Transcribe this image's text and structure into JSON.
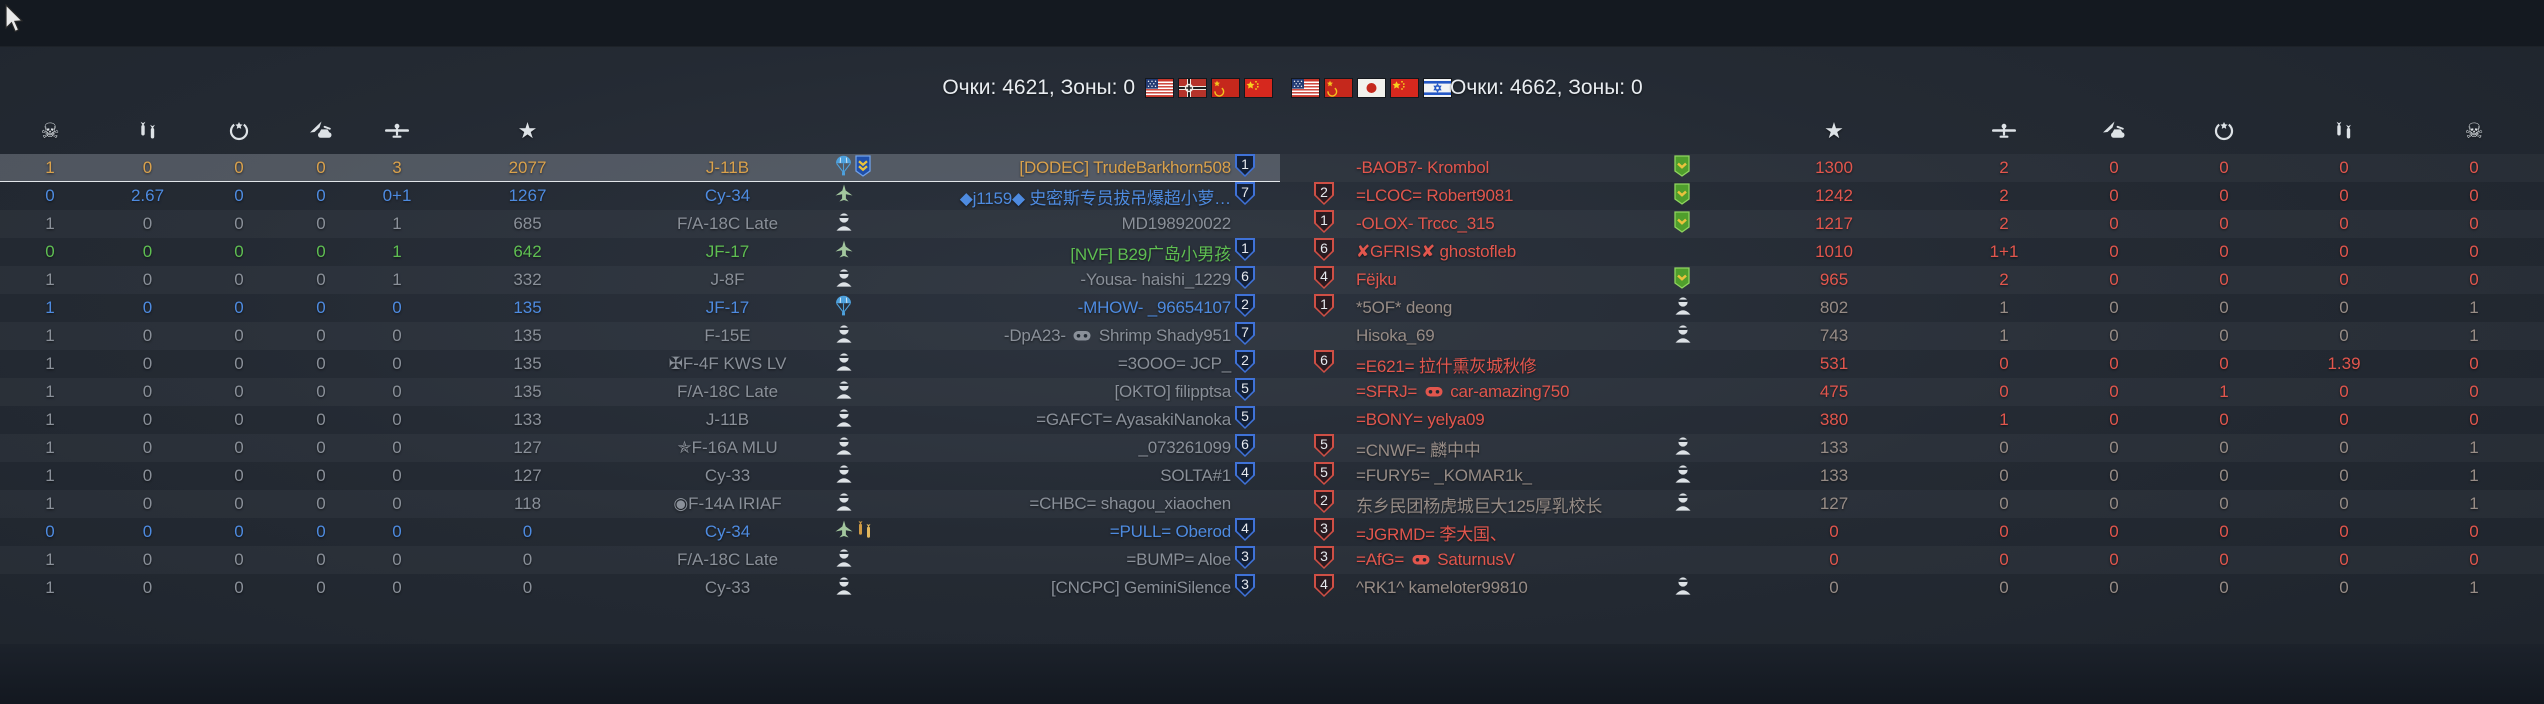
{
  "top_bar": {
    "left_score": "Очки: 4621, Зоны: 0",
    "right_score": "Очки: 4662, Зоны: 0",
    "left_flags": [
      "usa",
      "germany",
      "ussr",
      "china"
    ],
    "right_flags": [
      "usa",
      "ussr",
      "japan",
      "china",
      "israel"
    ]
  },
  "colors": {
    "self": "#d9a14c",
    "squad": "#4e8be0",
    "friendly_highlight": "#5fbf52",
    "friendly_dead": "#8a9099",
    "enemy": "#e2564d",
    "enemy_dead": "#978c86",
    "badge_friendly": "#3f72d8",
    "badge_enemy": "#cf4f45"
  },
  "left_table": {
    "columns": [
      "skull",
      "bombs",
      "wreath",
      "strike",
      "plane",
      "star"
    ],
    "rows": [
      {
        "deaths": "1",
        "bombs": "0",
        "awards": "0",
        "ground": "0",
        "air": "3",
        "score": "2077",
        "vehicle": "J-11B",
        "icons": [
          "parachute",
          "banner-blue"
        ],
        "name": "[DODEC] TrudeBarkhorn508",
        "badge": "1",
        "color": "gold",
        "selected": true
      },
      {
        "deaths": "0",
        "bombs": "2.67",
        "awards": "0",
        "ground": "0",
        "air": "0+1",
        "score": "1267",
        "vehicle": "Су-34",
        "icons": [
          "plane"
        ],
        "name": "◆j1159◆ 史密斯专员拔吊爆超小萝…",
        "badge": "7",
        "color": "blue"
      },
      {
        "deaths": "1",
        "bombs": "0",
        "awards": "0",
        "ground": "0",
        "air": "1",
        "score": "685",
        "vehicle": "F/A-18C Late",
        "icons": [
          "pilot"
        ],
        "name": "MD198920022",
        "badge": "",
        "color": "gray"
      },
      {
        "deaths": "0",
        "bombs": "0",
        "awards": "0",
        "ground": "0",
        "air": "1",
        "score": "642",
        "vehicle": "JF-17",
        "icons": [
          "plane"
        ],
        "name": "[NVF] B29广岛小男孩",
        "badge": "1",
        "color": "green"
      },
      {
        "deaths": "1",
        "bombs": "0",
        "awards": "0",
        "ground": "0",
        "air": "1",
        "score": "332",
        "vehicle": "J-8F",
        "icons": [
          "pilot"
        ],
        "name": "-Yousa- haishi_1229",
        "badge": "6",
        "color": "gray"
      },
      {
        "deaths": "1",
        "bombs": "0",
        "awards": "0",
        "ground": "0",
        "air": "0",
        "score": "135",
        "vehicle": "JF-17",
        "icons": [
          "parachute"
        ],
        "name": "-MHOW- _96654107",
        "badge": "2",
        "color": "blue"
      },
      {
        "deaths": "1",
        "bombs": "0",
        "awards": "0",
        "ground": "0",
        "air": "0",
        "score": "135",
        "vehicle": "F-15E",
        "icons": [
          "pilot"
        ],
        "name": "-DpA23- 🎮 Shrimp Shady951",
        "badge": "7",
        "color": "gray"
      },
      {
        "deaths": "1",
        "bombs": "0",
        "awards": "0",
        "ground": "0",
        "air": "0",
        "score": "135",
        "vehicle": "✠F-4F KWS LV",
        "icons": [
          "pilot"
        ],
        "name": "=3OOO= JCP_",
        "badge": "2",
        "color": "gray"
      },
      {
        "deaths": "1",
        "bombs": "0",
        "awards": "0",
        "ground": "0",
        "air": "0",
        "score": "135",
        "vehicle": "F/A-18C Late",
        "icons": [
          "pilot"
        ],
        "name": "[OKTO] filipptsa",
        "badge": "5",
        "color": "gray"
      },
      {
        "deaths": "1",
        "bombs": "0",
        "awards": "0",
        "ground": "0",
        "air": "0",
        "score": "133",
        "vehicle": "J-11B",
        "icons": [
          "pilot"
        ],
        "name": "=GAFCT= AyasakiNanoka",
        "badge": "5",
        "color": "gray"
      },
      {
        "deaths": "1",
        "bombs": "0",
        "awards": "0",
        "ground": "0",
        "air": "0",
        "score": "127",
        "vehicle": "✯F-16A MLU",
        "icons": [
          "pilot"
        ],
        "name": "_073261099",
        "badge": "6",
        "color": "gray"
      },
      {
        "deaths": "1",
        "bombs": "0",
        "awards": "0",
        "ground": "0",
        "air": "0",
        "score": "127",
        "vehicle": "Су-33",
        "icons": [
          "pilot"
        ],
        "name": "SOLTA#1",
        "badge": "4",
        "color": "gray"
      },
      {
        "deaths": "1",
        "bombs": "0",
        "awards": "0",
        "ground": "0",
        "air": "0",
        "score": "118",
        "vehicle": "◉F-14A IRIAF",
        "icons": [
          "pilot"
        ],
        "name": "=CHBC= shagou_xiaochen",
        "badge": "",
        "color": "gray"
      },
      {
        "deaths": "0",
        "bombs": "0",
        "awards": "0",
        "ground": "0",
        "air": "0",
        "score": "0",
        "vehicle": "Су-34",
        "icons": [
          "plane",
          "bombs-small"
        ],
        "name": "=PULL= Oberod",
        "badge": "4",
        "color": "blue"
      },
      {
        "deaths": "1",
        "bombs": "0",
        "awards": "0",
        "ground": "0",
        "air": "0",
        "score": "0",
        "vehicle": "F/A-18C Late",
        "icons": [
          "pilot"
        ],
        "name": "=BUMP= Aloe",
        "badge": "3",
        "color": "gray"
      },
      {
        "deaths": "1",
        "bombs": "0",
        "awards": "0",
        "ground": "0",
        "air": "0",
        "score": "0",
        "vehicle": "Су-33",
        "icons": [
          "pilot"
        ],
        "name": "[CNCPC] GeminiSilence",
        "badge": "3",
        "color": "gray"
      }
    ]
  },
  "right_table": {
    "columns": [
      "star",
      "plane",
      "strike",
      "wreath",
      "bombs",
      "skull"
    ],
    "rows": [
      {
        "badge": "",
        "name": "-BAOB7- Krombol",
        "icons": [
          "banner-green"
        ],
        "score": "1300",
        "air": "2",
        "ground": "0",
        "awards": "0",
        "bombs": "0",
        "deaths": "0",
        "color": "red"
      },
      {
        "badge": "2",
        "name": "=LCOC= Robert9081",
        "icons": [
          "banner-green"
        ],
        "score": "1242",
        "air": "2",
        "ground": "0",
        "awards": "0",
        "bombs": "0",
        "deaths": "0",
        "color": "red"
      },
      {
        "badge": "1",
        "name": "-OLOX- Trccc_315",
        "icons": [
          "banner-green"
        ],
        "score": "1217",
        "air": "2",
        "ground": "0",
        "awards": "0",
        "bombs": "0",
        "deaths": "0",
        "color": "red"
      },
      {
        "badge": "6",
        "name": "✘GFRIS✘ ghostofleb",
        "icons": [],
        "score": "1010",
        "air": "1+1",
        "ground": "0",
        "awards": "0",
        "bombs": "0",
        "deaths": "0",
        "color": "red"
      },
      {
        "badge": "4",
        "name": "Fëjku",
        "icons": [
          "banner-green"
        ],
        "score": "965",
        "air": "2",
        "ground": "0",
        "awards": "0",
        "bombs": "0",
        "deaths": "0",
        "color": "red"
      },
      {
        "badge": "1",
        "name": "*5OF* deong",
        "icons": [
          "pilot"
        ],
        "score": "802",
        "air": "1",
        "ground": "0",
        "awards": "0",
        "bombs": "0",
        "deaths": "1",
        "color": "dgray"
      },
      {
        "badge": "",
        "name": "Hisoka_69",
        "icons": [
          "pilot"
        ],
        "score": "743",
        "air": "1",
        "ground": "0",
        "awards": "0",
        "bombs": "0",
        "deaths": "1",
        "color": "dgray"
      },
      {
        "badge": "6",
        "name": "=E621= 拉什熏灰城秋修",
        "icons": [],
        "score": "531",
        "air": "0",
        "ground": "0",
        "awards": "0",
        "bombs": "1.39",
        "deaths": "0",
        "color": "red"
      },
      {
        "badge": "",
        "name": "=SFRJ= 🎮 car-amazing750",
        "icons": [],
        "score": "475",
        "air": "0",
        "ground": "0",
        "awards": "1",
        "bombs": "0",
        "deaths": "0",
        "color": "red"
      },
      {
        "badge": "",
        "name": "=BONY= yelya09",
        "icons": [],
        "score": "380",
        "air": "1",
        "ground": "0",
        "awards": "0",
        "bombs": "0",
        "deaths": "0",
        "color": "red"
      },
      {
        "badge": "5",
        "name": "=CNWF= 麟中中",
        "icons": [
          "pilot"
        ],
        "score": "133",
        "air": "0",
        "ground": "0",
        "awards": "0",
        "bombs": "0",
        "deaths": "1",
        "color": "dgray"
      },
      {
        "badge": "5",
        "name": "=FURY5= _KOMAR1k_",
        "icons": [
          "pilot"
        ],
        "score": "133",
        "air": "0",
        "ground": "0",
        "awards": "0",
        "bombs": "0",
        "deaths": "1",
        "color": "dgray"
      },
      {
        "badge": "2",
        "name": "东乡民团杨虎城巨大125厚乳校长",
        "icons": [
          "pilot"
        ],
        "score": "127",
        "air": "0",
        "ground": "0",
        "awards": "0",
        "bombs": "0",
        "deaths": "1",
        "color": "dgray"
      },
      {
        "badge": "3",
        "name": "=JGRMD= 李大国、",
        "icons": [],
        "score": "0",
        "air": "0",
        "ground": "0",
        "awards": "0",
        "bombs": "0",
        "deaths": "0",
        "color": "red"
      },
      {
        "badge": "3",
        "name": "=AfG= 🎮 SaturnusV",
        "icons": [],
        "score": "0",
        "air": "0",
        "ground": "0",
        "awards": "0",
        "bombs": "0",
        "deaths": "0",
        "color": "red"
      },
      {
        "badge": "4",
        "name": "^RK1^ kameloter99810",
        "icons": [
          "pilot"
        ],
        "score": "0",
        "air": "0",
        "ground": "0",
        "awards": "0",
        "bombs": "0",
        "deaths": "1",
        "color": "dgray"
      }
    ]
  }
}
